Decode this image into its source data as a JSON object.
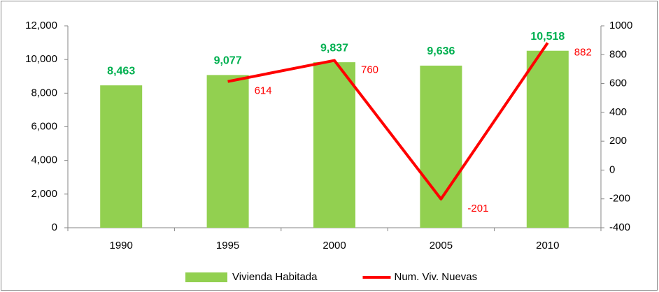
{
  "chart_data": {
    "type": "bar",
    "categories": [
      "1990",
      "1995",
      "2000",
      "2005",
      "2010"
    ],
    "series": [
      {
        "name": "Vivienda Habitada",
        "type": "bar",
        "color": "#92d050",
        "label_color": "#00b050",
        "values": [
          8463,
          9077,
          9837,
          9636,
          10518
        ],
        "value_labels": [
          "8,463",
          "9,077",
          "9,837",
          "9,636",
          "10,518"
        ]
      },
      {
        "name": "Num. Viv. Nuevas",
        "type": "line",
        "axis": "y2",
        "color": "#ff0000",
        "values": [
          null,
          614,
          760,
          -201,
          882
        ]
      }
    ],
    "ylim": [
      0,
      12000
    ],
    "yticks": [
      0,
      {
        "value": 2000,
        "label": "2,000"
      },
      {
        "value": 4000,
        "label": "4,000"
      },
      {
        "value": 6000,
        "label": "6,000"
      },
      {
        "value": 8000,
        "label": "8,000"
      },
      {
        "value": 10000,
        "label": "10,000"
      },
      {
        "value": 12000,
        "label": "12,000"
      }
    ],
    "y2lim": [
      -400,
      1000
    ],
    "y2ticks": [
      -400,
      -200,
      0,
      200,
      400,
      600,
      800,
      1000
    ],
    "legend": "bottom"
  }
}
